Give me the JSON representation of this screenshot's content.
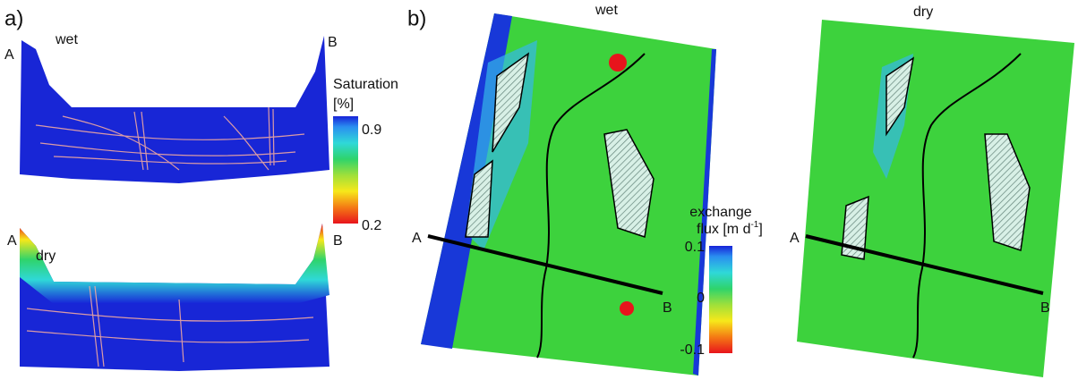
{
  "panel_a": {
    "label": "a)",
    "wet": {
      "title": "wet",
      "left": "A",
      "right": "B"
    },
    "dry": {
      "title": "dry",
      "left": "A",
      "right": "B"
    },
    "colorbar": {
      "title_line1": "Saturation",
      "title_line2": "[%]",
      "top": "0.9",
      "bottom": "0.2"
    }
  },
  "panel_b": {
    "label": "b)",
    "wet": {
      "title": "wet",
      "left": "A",
      "right": "B"
    },
    "dry": {
      "title": "dry",
      "left": "A",
      "right": "B"
    },
    "colorbar": {
      "title_line1": "exchange",
      "title_line2": "flux [m d",
      "title_sup": "-1",
      "title_close": "]",
      "top": "0.1",
      "middle": "0",
      "bottom": "-0.1"
    }
  }
}
